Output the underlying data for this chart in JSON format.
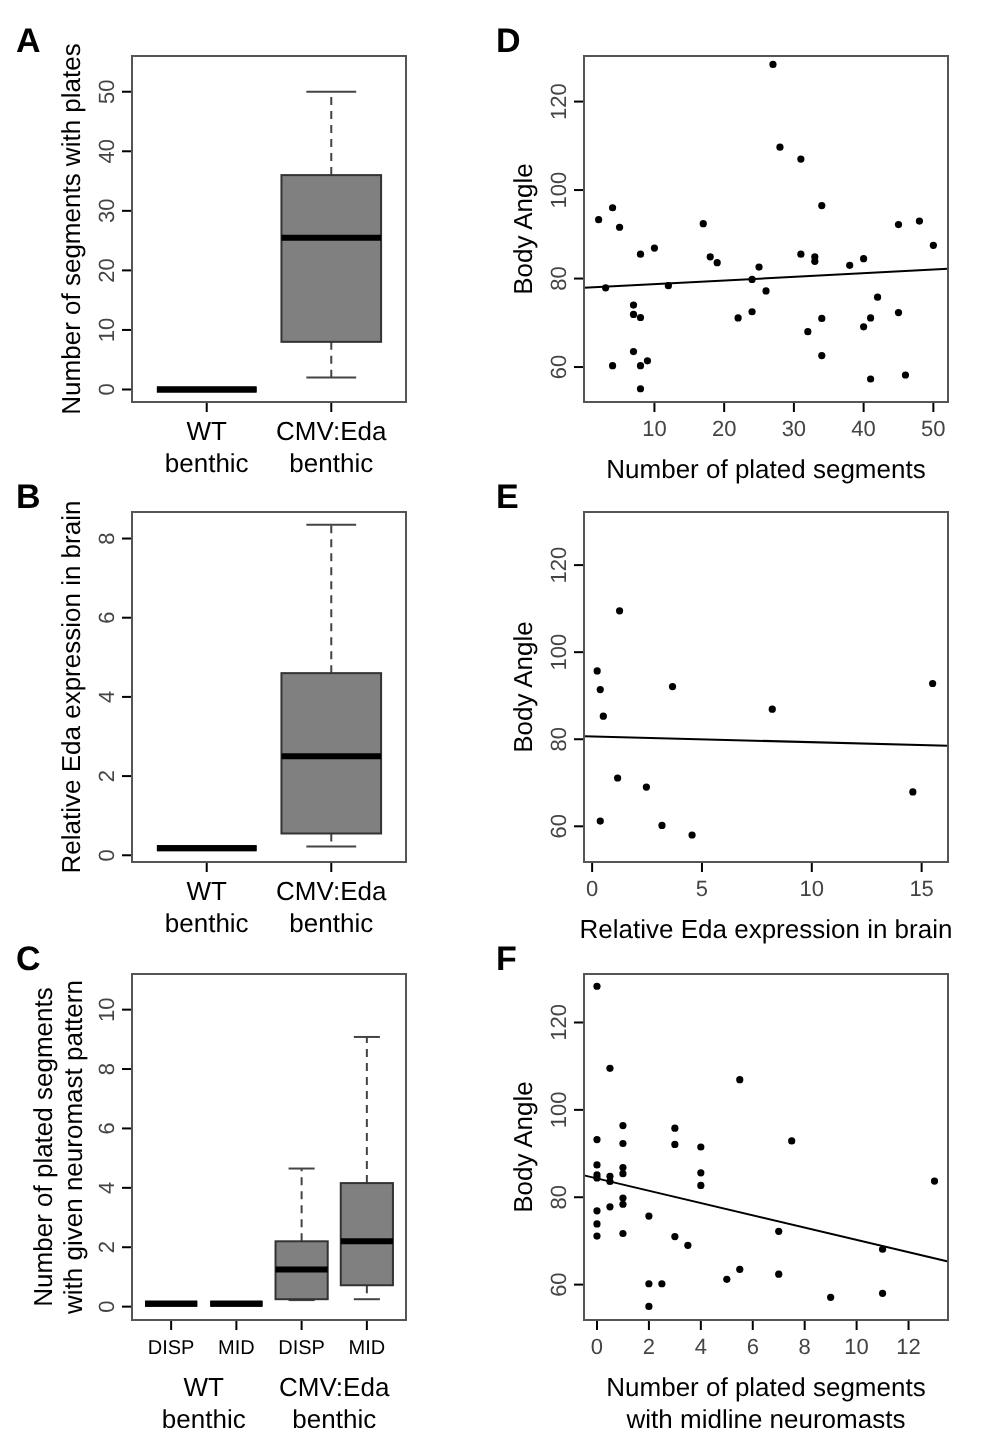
{
  "chart_data": [
    {
      "type": "box",
      "title": "A",
      "ylabel": "Number of segments with plates",
      "categories": [
        "WT benthic",
        "CMV:Eda benthic"
      ],
      "ylim": [
        -2.1,
        56
      ],
      "yticks": [
        0,
        10,
        20,
        30,
        40,
        50
      ],
      "series": [
        {
          "colors": [
            "#000000",
            "#808080"
          ],
          "boxes": [
            {
              "low": 0,
              "q1": 0,
              "median": 0,
              "q3": 0,
              "high": 0
            },
            {
              "low": 2,
              "q1": 8,
              "median": 25.5,
              "q3": 36,
              "high": 50
            }
          ]
        }
      ]
    },
    {
      "type": "box",
      "title": "B",
      "ylabel": "Relative Eda expression in brain",
      "categories": [
        "WT benthic",
        "CMV:Eda benthic"
      ],
      "ylim": [
        -0.17,
        8.67
      ],
      "yticks": [
        0,
        2,
        4,
        6,
        8
      ],
      "series": [
        {
          "colors": [
            "#000000",
            "#808080"
          ],
          "boxes": [
            {
              "low": 0.18,
              "q1": 0.18,
              "median": 0.18,
              "q3": 0.18,
              "high": 0.18
            },
            {
              "low": 0.22,
              "q1": 0.55,
              "median": 2.5,
              "q3": 4.6,
              "high": 8.35
            }
          ]
        }
      ]
    },
    {
      "type": "box",
      "title": "C",
      "ylabel": "Number of plated segments\nwith given neuromast pattern",
      "categories": [
        "DISP",
        "MID",
        "DISP",
        "MID"
      ],
      "annotations": [
        "WT benthic",
        "CMV:Eda benthic"
      ],
      "ylim": [
        -0.45,
        11.2
      ],
      "yticks": [
        0,
        2,
        4,
        6,
        8,
        10
      ],
      "series": [
        {
          "colors": [
            "#000000",
            "#000000",
            "#808080",
            "#808080"
          ],
          "boxes": [
            {
              "low": 0.1,
              "q1": 0.1,
              "median": 0.1,
              "q3": 0.1,
              "high": 0.1
            },
            {
              "low": 0.1,
              "q1": 0.1,
              "median": 0.1,
              "q3": 0.1,
              "high": 0.1
            },
            {
              "low": 0.22,
              "q1": 0.25,
              "median": 1.25,
              "q3": 2.2,
              "high": 4.65
            },
            {
              "low": 0.25,
              "q1": 0.72,
              "median": 2.2,
              "q3": 4.16,
              "high": 9.08
            }
          ]
        }
      ]
    },
    {
      "type": "scatter",
      "title": "D",
      "xlabel": "Number of plated segments",
      "ylabel": "Body Angle",
      "xlim": [
        -0.1,
        52.1
      ],
      "ylim": [
        52.1,
        130.3
      ],
      "xticks": [
        10,
        20,
        30,
        40,
        50
      ],
      "yticks": [
        60,
        80,
        100,
        120
      ],
      "series": [
        {
          "type": "scatter",
          "marker": "circle",
          "color": "#000000",
          "x": [
            2,
            3,
            4,
            4,
            5,
            7,
            7,
            7,
            8,
            8,
            8,
            8,
            9,
            10,
            12,
            17,
            18,
            19,
            22,
            24,
            24,
            25,
            26,
            27,
            28,
            31,
            31,
            32,
            33,
            33,
            34,
            34,
            34,
            38,
            40,
            40,
            41,
            41,
            42,
            45,
            45,
            46,
            48,
            50
          ],
          "values": [
            93.3,
            77.9,
            96,
            60.3,
            91.6,
            74,
            71.9,
            63.5,
            85.5,
            71.2,
            60.3,
            55.1,
            61.4,
            86.9,
            78.4,
            92.4,
            84.9,
            83.6,
            71.1,
            79.8,
            72.5,
            82.6,
            77.2,
            128.4,
            109.7,
            107,
            85.5,
            68,
            84.9,
            83.9,
            96.5,
            71,
            62.6,
            83,
            84.5,
            69.1,
            71.1,
            57.3,
            75.8,
            92.2,
            72.3,
            58.2,
            93,
            87.5
          ]
        },
        {
          "type": "line",
          "color": "#000000",
          "x": [
            -0.1,
            52.1
          ],
          "values": [
            77.9,
            82.2
          ]
        }
      ]
    },
    {
      "type": "scatter",
      "title": "E",
      "xlabel": "Relative Eda expression in brain",
      "ylabel": "Body Angle",
      "xlim": [
        -0.37,
        16.2
      ],
      "ylim": [
        51.8,
        132.2
      ],
      "xticks": [
        0,
        5,
        10,
        15
      ],
      "yticks": [
        60,
        80,
        100,
        120
      ],
      "series": [
        {
          "type": "scatter",
          "marker": "circle",
          "color": "#000000",
          "x": [
            0.23,
            0.37,
            0.51,
            0.37,
            1.25,
            1.16,
            2.47,
            3.18,
            3.66,
            4.55,
            8.2,
            14.6,
            15.5
          ],
          "values": [
            95.7,
            91.4,
            85.3,
            61.2,
            109.5,
            71.1,
            69,
            60.2,
            92.1,
            58,
            86.9,
            67.9,
            92.8
          ]
        },
        {
          "type": "line",
          "color": "#000000",
          "x": [
            -0.37,
            16.2
          ],
          "values": [
            80.7,
            78.5
          ]
        }
      ]
    },
    {
      "type": "scatter",
      "title": "F",
      "xlabel": "Number of plated segments\nwith midline neuromasts",
      "ylabel": "Body Angle",
      "xlim": [
        -0.5,
        13.52
      ],
      "ylim": [
        51.9,
        131.1
      ],
      "xticks": [
        0,
        2,
        4,
        6,
        8,
        10,
        12
      ],
      "yticks": [
        60,
        80,
        100,
        120
      ],
      "series": [
        {
          "type": "scatter",
          "marker": "circle",
          "color": "#000000",
          "x": [
            0,
            0,
            0,
            0,
            0,
            0,
            0,
            0,
            0.5,
            0.5,
            0.5,
            0.5,
            1,
            1,
            1,
            1,
            1,
            1,
            1,
            2,
            2,
            2,
            2.5,
            3,
            3,
            3,
            3.5,
            4,
            4,
            4,
            5,
            5.5,
            5.5,
            7.5,
            7,
            7,
            9,
            11,
            11,
            13
          ],
          "values": [
            128.3,
            93.2,
            87.4,
            85.1,
            84.4,
            76.9,
            73.9,
            71.1,
            109.5,
            84.8,
            83.6,
            77.8,
            96.4,
            92.3,
            86.8,
            85.4,
            79.8,
            78.4,
            71.7,
            75.7,
            60.2,
            55,
            60.2,
            95.8,
            92.1,
            71,
            69,
            91.5,
            85.6,
            82.7,
            61.2,
            106.9,
            63.5,
            92.9,
            72.2,
            62.4,
            57.1,
            68.1,
            58,
            83.7
          ]
        },
        {
          "type": "line",
          "color": "#000000",
          "x": [
            -0.5,
            13.52
          ],
          "values": [
            85,
            65.3
          ]
        }
      ]
    }
  ]
}
